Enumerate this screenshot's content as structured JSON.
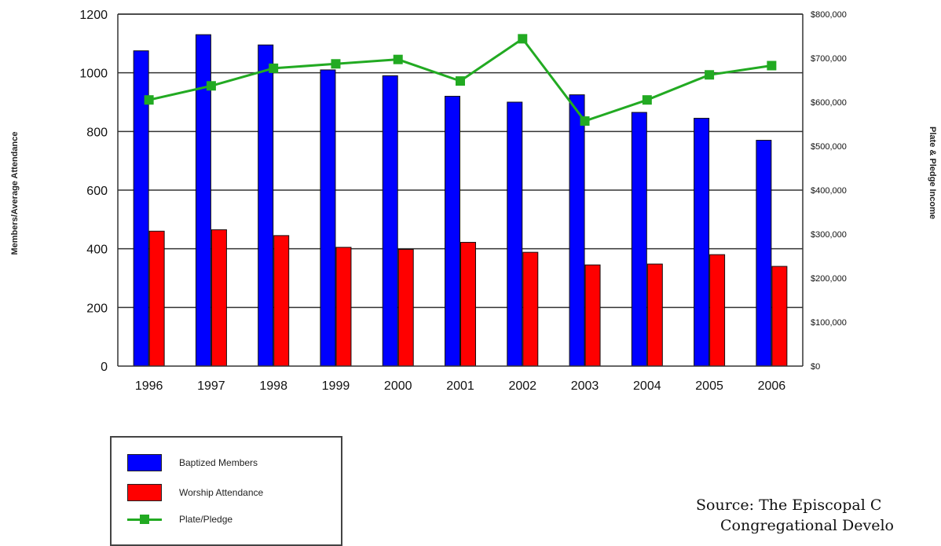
{
  "chart_data": {
    "type": "bar",
    "categories": [
      "1996",
      "1997",
      "1998",
      "1999",
      "2000",
      "2001",
      "2002",
      "2003",
      "2004",
      "2005",
      "2006"
    ],
    "series": [
      {
        "name": "Baptized Members",
        "type": "bar",
        "axis": "left",
        "color": "#0000ff",
        "values": [
          1075,
          1130,
          1095,
          1010,
          990,
          920,
          900,
          925,
          865,
          845,
          770
        ]
      },
      {
        "name": "Worship Attendance",
        "type": "bar",
        "axis": "left",
        "color": "#ff0000",
        "values": [
          460,
          465,
          445,
          405,
          398,
          422,
          388,
          345,
          348,
          380,
          340
        ]
      },
      {
        "name": "Plate/Pledge",
        "type": "line",
        "axis": "right",
        "color": "#22aa22",
        "values": [
          605000,
          637000,
          677000,
          687000,
          697000,
          648000,
          744000,
          557000,
          605000,
          662000,
          683000
        ]
      }
    ],
    "ylabel": "Members/Average Attendance",
    "y2label": "Plate & Pledge Income",
    "ylim": [
      0,
      1200
    ],
    "y2lim": [
      0,
      800000
    ],
    "yticks": [
      "0",
      "200",
      "400",
      "600",
      "800",
      "1000",
      "1200"
    ],
    "y2ticks": [
      "$0",
      "$100,000",
      "$200,000",
      "$300,000",
      "$400,000",
      "$500,000",
      "$600,000",
      "$700,000",
      "$800,000"
    ],
    "grid": true,
    "legend_position": "bottom-left"
  },
  "legend": [
    {
      "label": "Baptized Members",
      "kind": "bar",
      "color": "#0000ff"
    },
    {
      "label": "Worship Attendance",
      "kind": "bar",
      "color": "#ff0000"
    },
    {
      "label": "Plate/Pledge",
      "kind": "line",
      "color": "#22aa22"
    }
  ],
  "source": {
    "line1": "Source: The Episcopal C",
    "line2": "Congregational Develo"
  }
}
